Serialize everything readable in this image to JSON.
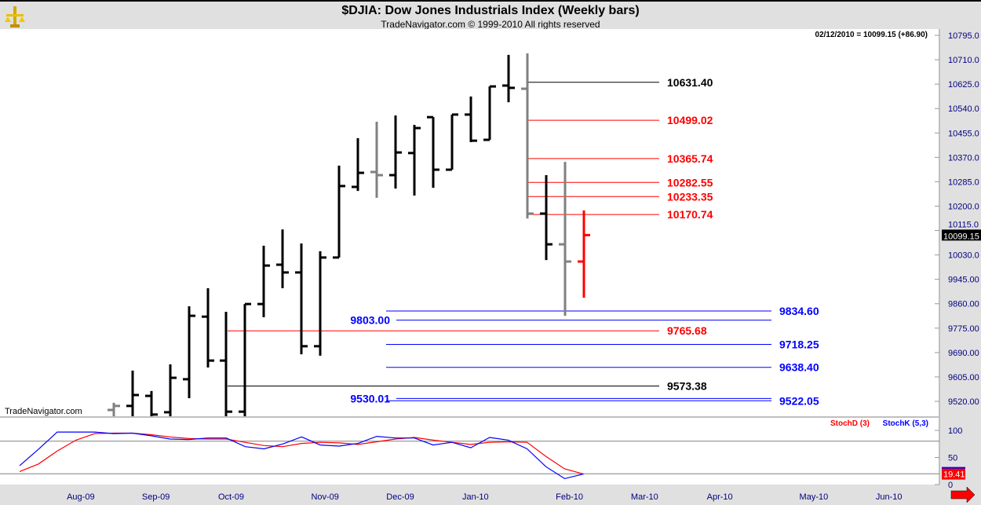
{
  "header": {
    "title": "$DJIA:  Dow Jones Industrials Index  (Weekly bars)",
    "subtitle": "TradeNavigator.com © 1999-2010 All rights reserved",
    "quote": "02/12/2010 = 10099.15 (+86.90)",
    "watermark": "TradeNavigator.com",
    "logo": "TradeNavigator"
  },
  "colors": {
    "up_bar": "#000000",
    "gray_bar": "#808080",
    "last_bar": "#ff0000",
    "stoch_d": "#ff0000",
    "stoch_k": "#0000ff",
    "axis_text": "#000080"
  },
  "chart_data": [
    {
      "type": "ohlc",
      "title": "$DJIA:  Dow Jones Industrials Index  (Weekly bars)",
      "ylim": [
        9468,
        10800
      ],
      "y_ticks": [
        "10795.0",
        "10710.0",
        "10625.0",
        "10540.0",
        "10455.0",
        "10370.0",
        "10285.0",
        "10200.0",
        "10115.0",
        "10030.0",
        "9945.00",
        "9860.00",
        "9775.00",
        "9690.00",
        "9605.00",
        "9520.00"
      ],
      "last_price_label": "10099.15",
      "bars": [
        {
          "date": "2009-08-21",
          "o": 9490,
          "h": 9515,
          "l": 9441,
          "c": 9504,
          "color": "gray"
        },
        {
          "date": "2009-08-28",
          "o": 9504,
          "h": 9627,
          "l": 9427,
          "c": 9542,
          "color": "black"
        },
        {
          "date": "2009-09-04",
          "o": 9539,
          "h": 9556,
          "l": 9427,
          "c": 9474,
          "color": "black"
        },
        {
          "date": "2009-09-11",
          "o": 9482,
          "h": 9649,
          "l": 9427,
          "c": 9602,
          "color": "black"
        },
        {
          "date": "2009-09-18",
          "o": 9597,
          "h": 9851,
          "l": 9531,
          "c": 9818,
          "color": "black"
        },
        {
          "date": "2009-09-25",
          "o": 9815,
          "h": 9914,
          "l": 9638,
          "c": 9662,
          "color": "black"
        },
        {
          "date": "2009-10-02",
          "o": 9662,
          "h": 9832,
          "l": 9440,
          "c": 9484,
          "color": "black"
        },
        {
          "date": "2009-10-09",
          "o": 9484,
          "h": 9859,
          "l": 9440,
          "c": 9859,
          "color": "black"
        },
        {
          "date": "2009-10-16",
          "o": 9859,
          "h": 10062,
          "l": 9813,
          "c": 9993,
          "color": "black"
        },
        {
          "date": "2009-10-23",
          "o": 9996,
          "h": 10119,
          "l": 9914,
          "c": 9969,
          "color": "black"
        },
        {
          "date": "2009-10-30",
          "o": 9969,
          "h": 10070,
          "l": 9684,
          "c": 9712,
          "color": "black"
        },
        {
          "date": "2009-11-06",
          "o": 9712,
          "h": 10043,
          "l": 9679,
          "c": 10021,
          "color": "black"
        },
        {
          "date": "2009-11-13",
          "o": 10021,
          "h": 10341,
          "l": 10021,
          "c": 10270,
          "color": "black"
        },
        {
          "date": "2009-11-20",
          "o": 10267,
          "h": 10437,
          "l": 10253,
          "c": 10316,
          "color": "black"
        },
        {
          "date": "2009-11-27",
          "o": 10319,
          "h": 10494,
          "l": 10229,
          "c": 10308,
          "color": "gray"
        },
        {
          "date": "2009-12-04",
          "o": 10308,
          "h": 10516,
          "l": 10261,
          "c": 10387,
          "color": "black"
        },
        {
          "date": "2009-12-11",
          "o": 10385,
          "h": 10483,
          "l": 10237,
          "c": 10472,
          "color": "black"
        },
        {
          "date": "2009-12-18",
          "o": 10510,
          "h": 10510,
          "l": 10264,
          "c": 10327,
          "color": "black"
        },
        {
          "date": "2009-12-25",
          "o": 10327,
          "h": 10519,
          "l": 10327,
          "c": 10519,
          "color": "black"
        },
        {
          "date": "2010-01-01",
          "o": 10519,
          "h": 10582,
          "l": 10423,
          "c": 10428,
          "color": "black"
        },
        {
          "date": "2010-01-08",
          "o": 10431,
          "h": 10617,
          "l": 10431,
          "c": 10617,
          "color": "black"
        },
        {
          "date": "2010-01-15",
          "o": 10620,
          "h": 10727,
          "l": 10562,
          "c": 10612,
          "color": "black"
        },
        {
          "date": "2010-01-22",
          "o": 10609,
          "h": 10732,
          "l": 10157,
          "c": 10174,
          "color": "gray"
        },
        {
          "date": "2010-01-29",
          "o": 10174,
          "h": 10308,
          "l": 10012,
          "c": 10067,
          "color": "black"
        },
        {
          "date": "2010-02-05",
          "o": 10067,
          "h": 10354,
          "l": 9818,
          "c": 10007,
          "color": "gray"
        },
        {
          "date": "2010-02-12",
          "o": 10007,
          "h": 10185,
          "l": 9881,
          "c": 10099.15,
          "color": "red"
        }
      ],
      "levels": [
        {
          "price": 10631.4,
          "label": "10631.40",
          "color": "#000000",
          "group": "upper"
        },
        {
          "price": 10499.02,
          "label": "10499.02",
          "color": "#ff0000",
          "group": "upper"
        },
        {
          "price": 10365.74,
          "label": "10365.74",
          "color": "#ff0000",
          "group": "upper"
        },
        {
          "price": 10282.55,
          "label": "10282.55",
          "color": "#ff0000",
          "group": "upper"
        },
        {
          "price": 10233.35,
          "label": "10233.35",
          "color": "#ff0000",
          "group": "upper"
        },
        {
          "price": 10170.74,
          "label": "10170.74",
          "color": "#ff0000",
          "group": "upper"
        },
        {
          "price": 9834.6,
          "label": "9834.60",
          "color": "#0000ff",
          "group": "right"
        },
        {
          "price": 9803.0,
          "label": "9803.00",
          "color": "#0000ff",
          "group": "left"
        },
        {
          "price": 9765.68,
          "label": "9765.68",
          "color": "#ff0000",
          "group": "mid"
        },
        {
          "price": 9718.25,
          "label": "9718.25",
          "color": "#0000ff",
          "group": "right"
        },
        {
          "price": 9638.4,
          "label": "9638.40",
          "color": "#0000ff",
          "group": "right"
        },
        {
          "price": 9573.38,
          "label": "9573.38",
          "color": "#000000",
          "group": "mid"
        },
        {
          "price": 9530.01,
          "label": "9530.01",
          "color": "#0000ff",
          "group": "left"
        },
        {
          "price": 9522.05,
          "label": "9522.05",
          "color": "#0000ff",
          "group": "right"
        }
      ]
    },
    {
      "type": "line",
      "ylim": [
        0,
        100
      ],
      "y_ticks": [
        "100",
        "50",
        "0"
      ],
      "reference_lines": [
        80,
        20
      ],
      "legend": [
        "StochD (3)",
        "StochK (5,3)"
      ],
      "legend_placement": "top-right",
      "last_value_label": "19.41",
      "x_start": "2009-07-17",
      "x_labels": [
        "Aug-09",
        "Sep-09",
        "Oct-09",
        "Nov-09",
        "Dec-09",
        "Jan-10",
        "Feb-10",
        "Mar-10",
        "Apr-10",
        "May-10",
        "Jun-10"
      ],
      "series": [
        {
          "name": "StochD (3)",
          "color": "#ff0000",
          "values": [
            24,
            38,
            62,
            82,
            94,
            95,
            95,
            92,
            88,
            85,
            84,
            84,
            78,
            72,
            70,
            76,
            78,
            77,
            74,
            79,
            84,
            87,
            82,
            78,
            74,
            78,
            79,
            78,
            52,
            29,
            19.41
          ]
        },
        {
          "name": "StochK (5,3)",
          "color": "#0000ff",
          "values": [
            35,
            65,
            97,
            97,
            97,
            94,
            95,
            90,
            84,
            83,
            86,
            86,
            70,
            66,
            75,
            88,
            73,
            71,
            76,
            89,
            86,
            86,
            73,
            78,
            68,
            87,
            82,
            66,
            33,
            11,
            19.41
          ]
        }
      ]
    }
  ]
}
